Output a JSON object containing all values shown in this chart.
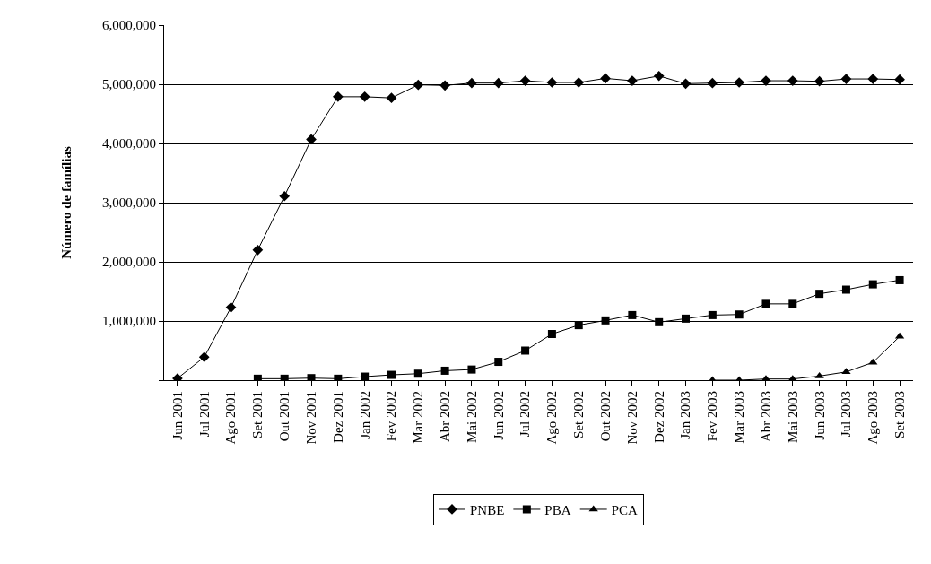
{
  "chart_data": {
    "type": "line",
    "ylabel": "Número de famílias",
    "categories": [
      "Jun 2001",
      "Jul 2001",
      "Ago 2001",
      "Set 2001",
      "Out 2001",
      "Nov 2001",
      "Dez 2001",
      "Jan 2002",
      "Fev 2002",
      "Mar 2002",
      "Abr 2002",
      "Mai 2002",
      "Jun 2002",
      "Jul 2002",
      "Ago 2002",
      "Set 2002",
      "Out 2002",
      "Nov 2002",
      "Dez 2002",
      "Jan 2003",
      "Fev 2003",
      "Mar 2003",
      "Abr 2003",
      "Mai 2003",
      "Jun 2003",
      "Jul 2003",
      "Ago 2003",
      "Set 2003"
    ],
    "series": [
      {
        "name": "PNBE",
        "color": "#000000",
        "marker": "diamond",
        "values": [
          30000,
          390000,
          1230000,
          2200000,
          3110000,
          4070000,
          4790000,
          4790000,
          4770000,
          4990000,
          4980000,
          5020000,
          5020000,
          5060000,
          5030000,
          5030000,
          5100000,
          5060000,
          5140000,
          5010000,
          5020000,
          5030000,
          5060000,
          5060000,
          5050000,
          5090000,
          5090000,
          5080000
        ]
      },
      {
        "name": "PBA",
        "color": "#000000",
        "marker": "square",
        "values": [
          null,
          null,
          null,
          25000,
          25000,
          35000,
          25000,
          60000,
          90000,
          110000,
          160000,
          180000,
          310000,
          500000,
          780000,
          930000,
          1010000,
          1100000,
          980000,
          1040000,
          1100000,
          1110000,
          1290000,
          1290000,
          1460000,
          1530000,
          1620000,
          1690000
        ]
      },
      {
        "name": "PCA",
        "color": "#000000",
        "marker": "triangle",
        "values": [
          null,
          null,
          null,
          null,
          null,
          null,
          null,
          null,
          null,
          null,
          null,
          null,
          null,
          null,
          null,
          null,
          null,
          null,
          null,
          null,
          0,
          0,
          20000,
          20000,
          70000,
          140000,
          300000,
          740000
        ]
      }
    ],
    "ylim": [
      0,
      6000000
    ],
    "yticks": [
      {
        "value": 0,
        "label": null
      },
      {
        "value": 1000000,
        "label": "1,000,000"
      },
      {
        "value": 2000000,
        "label": "2,000,000"
      },
      {
        "value": 3000000,
        "label": "3,000,000"
      },
      {
        "value": 4000000,
        "label": "4,000,000"
      },
      {
        "value": 5000000,
        "label": "5,000,000"
      },
      {
        "value": 6000000,
        "label": "6,000,000"
      }
    ],
    "grid": "y",
    "legend": "bottom",
    "line_style": "solid"
  }
}
